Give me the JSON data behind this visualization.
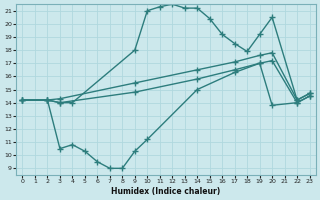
{
  "xlabel": "Humidex (Indice chaleur)",
  "xlim": [
    -0.5,
    23.5
  ],
  "ylim": [
    8.5,
    21.5
  ],
  "xticks": [
    0,
    1,
    2,
    3,
    4,
    5,
    6,
    7,
    8,
    9,
    10,
    11,
    12,
    13,
    14,
    15,
    16,
    17,
    18,
    19,
    20,
    21,
    22,
    23
  ],
  "yticks": [
    9,
    10,
    11,
    12,
    13,
    14,
    15,
    16,
    17,
    18,
    19,
    20,
    21
  ],
  "bg_color": "#cce8ec",
  "grid_color": "#b0d8de",
  "line_color": "#2d7d7d",
  "line_width": 1.0,
  "marker": "+",
  "marker_size": 5,
  "curves": [
    {
      "x": [
        0,
        2,
        3,
        4,
        9,
        10,
        11,
        12,
        13,
        14,
        15,
        16,
        17,
        18,
        19,
        20,
        22,
        23
      ],
      "y": [
        14.2,
        14.2,
        14.0,
        14.0,
        18.0,
        21.0,
        21.3,
        21.5,
        21.2,
        21.2,
        20.4,
        19.2,
        18.5,
        17.9,
        19.2,
        20.5,
        14.2,
        14.7
      ]
    },
    {
      "x": [
        0,
        2,
        3,
        9,
        14,
        17,
        19,
        20,
        22,
        23
      ],
      "y": [
        14.2,
        14.2,
        14.3,
        15.5,
        16.5,
        17.1,
        17.6,
        17.8,
        14.2,
        14.7
      ]
    },
    {
      "x": [
        0,
        2,
        3,
        9,
        14,
        17,
        19,
        20,
        22,
        23
      ],
      "y": [
        14.2,
        14.2,
        14.0,
        14.8,
        15.8,
        16.5,
        17.0,
        17.2,
        14.0,
        14.5
      ]
    },
    {
      "x": [
        0,
        2,
        3,
        4,
        5,
        6,
        7,
        8,
        9,
        10,
        14,
        17,
        19,
        20,
        22,
        23
      ],
      "y": [
        14.2,
        14.2,
        10.5,
        10.8,
        10.3,
        9.5,
        9.0,
        9.0,
        10.3,
        11.2,
        15.0,
        16.3,
        17.0,
        13.8,
        14.0,
        14.5
      ]
    }
  ]
}
